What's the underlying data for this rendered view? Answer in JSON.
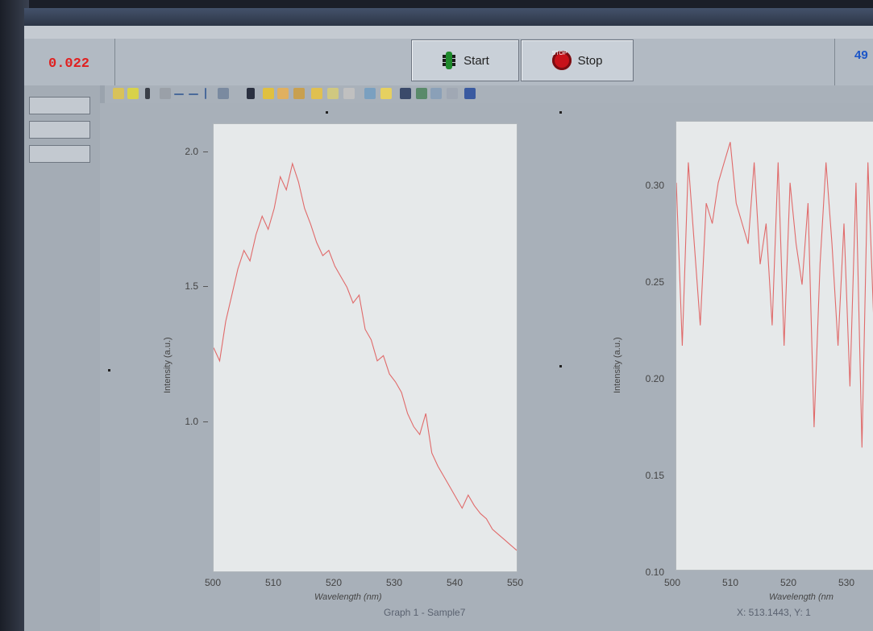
{
  "window": {
    "title": ""
  },
  "menu": {
    "items": []
  },
  "controls": {
    "readout_value": "0.022",
    "readout_unit": "",
    "start_label": "Start",
    "stop_label": "Stop",
    "counter": "49"
  },
  "side_buttons": [],
  "graph1": {
    "caption": "Graph 1 - Sample7",
    "xlabel": "Wavelength (nm)",
    "ylabel": "Intensity (a.u.)",
    "xticks": [
      "500",
      "510",
      "520",
      "530",
      "540",
      "550"
    ],
    "yticks": [
      "1.0",
      "1.5",
      "2.0"
    ]
  },
  "graph2": {
    "coords": "X: 513.1443, Y: 1",
    "xlabel": "Wavelength (nm",
    "ylabel": "Intensity (a.u.)",
    "xticks": [
      "500",
      "510",
      "520",
      "530"
    ],
    "yticks": [
      "0.10",
      "0.15",
      "0.20",
      "0.25",
      "0.30"
    ]
  },
  "colors": {
    "trace": "#e06a6a",
    "readout": "#e02020",
    "counter": "#1b55c8"
  },
  "chart_data": [
    {
      "type": "line",
      "xlabel": "Wavelength (nm)",
      "ylabel": "Intensity (a.u.)",
      "xlim": [
        500,
        550
      ],
      "ylim": [
        0.5,
        2.2
      ],
      "grid": false,
      "series": [
        {
          "x": [
            500,
            501,
            502,
            503,
            504,
            505,
            506,
            507,
            508,
            509,
            510,
            511,
            512,
            513,
            514,
            515,
            516,
            517,
            518,
            519,
            520,
            521,
            522,
            523,
            524,
            525,
            526,
            527,
            528,
            529,
            530,
            531,
            532,
            533,
            534,
            535,
            536,
            537,
            538,
            539,
            540,
            541,
            542,
            543,
            544,
            545,
            546,
            547,
            548,
            549,
            550
          ],
          "y": [
            1.35,
            1.3,
            1.45,
            1.55,
            1.65,
            1.72,
            1.68,
            1.78,
            1.85,
            1.8,
            1.88,
            2.0,
            1.95,
            2.05,
            1.98,
            1.88,
            1.82,
            1.75,
            1.7,
            1.72,
            1.66,
            1.62,
            1.58,
            1.52,
            1.55,
            1.42,
            1.38,
            1.3,
            1.32,
            1.25,
            1.22,
            1.18,
            1.1,
            1.05,
            1.02,
            1.1,
            0.95,
            0.9,
            0.86,
            0.82,
            0.78,
            0.74,
            0.79,
            0.75,
            0.72,
            0.7,
            0.66,
            0.64,
            0.62,
            0.6,
            0.58
          ]
        }
      ]
    },
    {
      "type": "line",
      "xlabel": "Wavelength (nm",
      "ylabel": "Intensity (a.u.)",
      "xlim": [
        500,
        535
      ],
      "ylim": [
        0.1,
        0.32
      ],
      "grid": false,
      "series": [
        {
          "x": [
            500,
            501,
            502,
            503,
            504,
            505,
            506,
            507,
            508,
            509,
            510,
            511,
            512,
            513,
            514,
            515,
            516,
            517,
            518,
            519,
            520,
            521,
            522,
            523,
            524,
            525,
            526,
            527,
            528,
            529,
            530,
            531,
            532,
            533,
            534
          ],
          "y": [
            0.29,
            0.21,
            0.3,
            0.26,
            0.22,
            0.28,
            0.27,
            0.29,
            0.3,
            0.31,
            0.28,
            0.27,
            0.26,
            0.3,
            0.25,
            0.27,
            0.22,
            0.3,
            0.21,
            0.29,
            0.26,
            0.24,
            0.28,
            0.17,
            0.25,
            0.3,
            0.26,
            0.21,
            0.27,
            0.19,
            0.29,
            0.16,
            0.3,
            0.22,
            0.28
          ]
        }
      ]
    }
  ]
}
